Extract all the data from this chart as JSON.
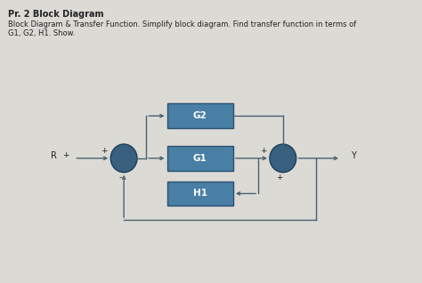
{
  "title": "Pr. 2 Block Diagram",
  "desc_line1": "Block Diagram & Transfer Function. Simplify block diagram. Find transfer function in terms of",
  "desc_line2": "G1, G2, H1. Show.",
  "bg_color": "#dcdad5",
  "box_color": "#4a7fa5",
  "box_text_color": "#ffffff",
  "circle_color": "#3a6080",
  "line_color": "#4a6070",
  "text_color": "#222222",
  "blocks": [
    "G2",
    "G1",
    "H1"
  ],
  "input_label": "R",
  "output_label": "Y",
  "plus_sign": "+",
  "minus_sign": "-"
}
